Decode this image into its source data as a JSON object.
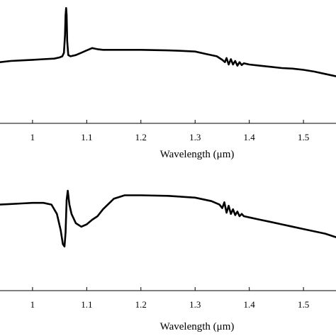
{
  "chart_data": [
    {
      "type": "line",
      "xlabel": "Wavelength (μm)",
      "xlim": [
        0.94,
        1.56
      ],
      "xticks": [
        "1",
        "1.1",
        "1.2",
        "1.3",
        "1.4",
        "1.5"
      ],
      "xtick_values": [
        1.0,
        1.1,
        1.2,
        1.3,
        1.4,
        1.5
      ],
      "ylim": [
        0,
        1
      ],
      "grid": false,
      "series": [
        {
          "x": [
            0.94,
            0.96,
            0.98,
            1.0,
            1.02,
            1.04,
            1.05,
            1.055,
            1.058,
            1.06,
            1.061,
            1.062,
            1.063,
            1.064,
            1.066,
            1.07,
            1.08,
            1.09,
            1.1,
            1.11,
            1.115,
            1.12,
            1.13,
            1.15,
            1.2,
            1.25,
            1.28,
            1.3,
            1.32,
            1.34,
            1.35,
            1.355,
            1.358,
            1.362,
            1.366,
            1.37,
            1.374,
            1.378,
            1.382,
            1.386,
            1.39,
            1.4,
            1.42,
            1.44,
            1.46,
            1.48,
            1.5,
            1.52,
            1.54,
            1.56
          ],
          "y": [
            0.52,
            0.53,
            0.535,
            0.54,
            0.545,
            0.55,
            0.56,
            0.57,
            0.6,
            0.75,
            0.92,
            0.98,
            0.92,
            0.7,
            0.58,
            0.57,
            0.58,
            0.6,
            0.62,
            0.64,
            0.635,
            0.63,
            0.625,
            0.625,
            0.625,
            0.62,
            0.615,
            0.61,
            0.59,
            0.57,
            0.54,
            0.52,
            0.555,
            0.5,
            0.545,
            0.5,
            0.53,
            0.49,
            0.52,
            0.495,
            0.51,
            0.5,
            0.49,
            0.48,
            0.47,
            0.465,
            0.455,
            0.44,
            0.42,
            0.4
          ]
        }
      ]
    },
    {
      "type": "line",
      "xlabel": "Wavelength (μm)",
      "xlim": [
        0.94,
        1.56
      ],
      "xticks": [
        "1",
        "1.1",
        "1.2",
        "1.3",
        "1.4",
        "1.5"
      ],
      "xtick_values": [
        1.0,
        1.1,
        1.2,
        1.3,
        1.4,
        1.5
      ],
      "ylim": [
        0,
        1
      ],
      "grid": false,
      "series": [
        {
          "x": [
            0.94,
            0.96,
            0.98,
            1.0,
            1.02,
            1.035,
            1.045,
            1.052,
            1.056,
            1.059,
            1.061,
            1.063,
            1.065,
            1.068,
            1.072,
            1.08,
            1.09,
            1.1,
            1.11,
            1.12,
            1.13,
            1.15,
            1.17,
            1.2,
            1.25,
            1.3,
            1.33,
            1.345,
            1.35,
            1.354,
            1.358,
            1.362,
            1.366,
            1.37,
            1.374,
            1.378,
            1.382,
            1.386,
            1.39,
            1.4,
            1.42,
            1.44,
            1.46,
            1.48,
            1.5,
            1.52,
            1.54,
            1.56
          ],
          "y": [
            0.74,
            0.745,
            0.75,
            0.755,
            0.755,
            0.74,
            0.66,
            0.52,
            0.4,
            0.38,
            0.5,
            0.78,
            0.86,
            0.74,
            0.66,
            0.58,
            0.55,
            0.57,
            0.61,
            0.64,
            0.7,
            0.79,
            0.82,
            0.82,
            0.815,
            0.8,
            0.77,
            0.74,
            0.71,
            0.76,
            0.67,
            0.73,
            0.66,
            0.7,
            0.65,
            0.68,
            0.64,
            0.66,
            0.64,
            0.63,
            0.61,
            0.59,
            0.57,
            0.55,
            0.53,
            0.51,
            0.49,
            0.46
          ]
        }
      ]
    }
  ]
}
